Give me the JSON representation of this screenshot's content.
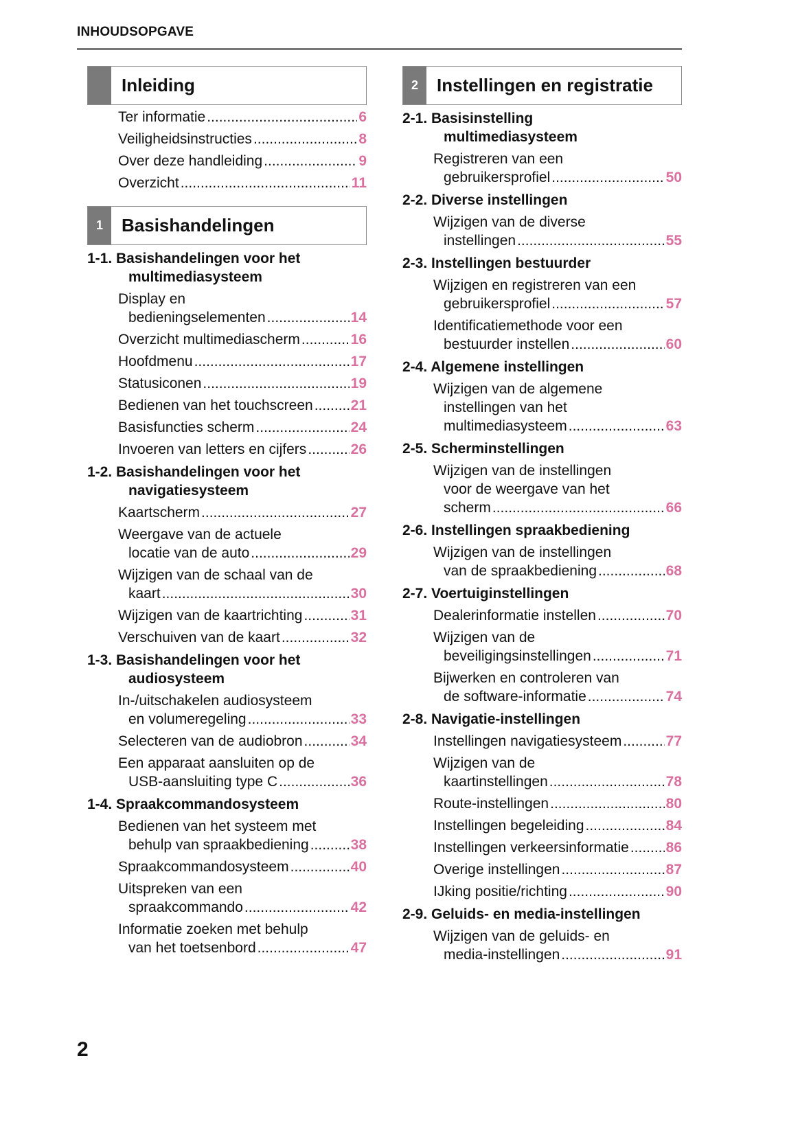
{
  "header": {
    "title": "INHOUDSOPGAVE"
  },
  "page_number": "2",
  "colors": {
    "page_ref": "#d9709f",
    "chapter_tab": "#7a7a7a"
  },
  "columns": [
    [
      {
        "type": "chapter",
        "num": "",
        "title": "Inleiding"
      },
      {
        "type": "entry",
        "lines": [
          "Ter informatie "
        ],
        "page": "6"
      },
      {
        "type": "entry",
        "lines": [
          "Veiligheidsinstructies "
        ],
        "page": "8"
      },
      {
        "type": "entry",
        "lines": [
          "Over deze handleiding"
        ],
        "page": "9"
      },
      {
        "type": "entry",
        "lines": [
          "Overzicht"
        ],
        "page": "11"
      },
      {
        "type": "chapter",
        "num": "1",
        "title": "Basishandelingen"
      },
      {
        "type": "section",
        "lines": [
          "1-1. Basishandelingen voor het",
          "multimediasysteem"
        ]
      },
      {
        "type": "entry",
        "lines": [
          "Display en",
          "bedieningselementen "
        ],
        "page": "14"
      },
      {
        "type": "entry",
        "lines": [
          "Overzicht multimediascherm "
        ],
        "page": "16"
      },
      {
        "type": "entry",
        "lines": [
          "Hoofdmenu "
        ],
        "page": "17"
      },
      {
        "type": "entry",
        "lines": [
          "Statusiconen "
        ],
        "page": "19"
      },
      {
        "type": "entry",
        "lines": [
          "Bedienen van het touchscreen "
        ],
        "page": "21"
      },
      {
        "type": "entry",
        "lines": [
          "Basisfuncties scherm"
        ],
        "page": "24"
      },
      {
        "type": "entry",
        "lines": [
          "Invoeren van letters en cijfers"
        ],
        "page": "26"
      },
      {
        "type": "section",
        "lines": [
          "1-2. Basishandelingen voor het",
          "navigatiesysteem"
        ]
      },
      {
        "type": "entry",
        "lines": [
          "Kaartscherm "
        ],
        "page": "27"
      },
      {
        "type": "entry",
        "lines": [
          "Weergave van de actuele",
          "locatie van de auto "
        ],
        "page": "29"
      },
      {
        "type": "entry",
        "lines": [
          "Wijzigen van de schaal van de",
          "kaart "
        ],
        "page": "30"
      },
      {
        "type": "entry",
        "lines": [
          "Wijzigen van de kaartrichting"
        ],
        "page": "31"
      },
      {
        "type": "entry",
        "lines": [
          "Verschuiven van de kaart "
        ],
        "page": "32"
      },
      {
        "type": "section",
        "lines": [
          "1-3. Basishandelingen voor het",
          "audiosysteem"
        ]
      },
      {
        "type": "entry",
        "lines": [
          "In-/uitschakelen audiosysteem",
          "en volumeregeling "
        ],
        "page": "33"
      },
      {
        "type": "entry",
        "lines": [
          "Selecteren van de audiobron"
        ],
        "page": "34"
      },
      {
        "type": "entry",
        "lines": [
          "Een apparaat aansluiten op de",
          "USB-aansluiting type C "
        ],
        "page": "36"
      },
      {
        "type": "section",
        "lines": [
          "1-4. Spraakcommandosysteem"
        ]
      },
      {
        "type": "entry",
        "lines": [
          "Bedienen van het systeem met",
          "behulp van spraakbediening "
        ],
        "page": "38"
      },
      {
        "type": "entry",
        "lines": [
          "Spraakcommandosysteem "
        ],
        "page": "40"
      },
      {
        "type": "entry",
        "lines": [
          "Uitspreken van een",
          "spraakcommando"
        ],
        "page": "42"
      },
      {
        "type": "entry",
        "lines": [
          "Informatie zoeken met behulp",
          "van het toetsenbord"
        ],
        "page": "47"
      }
    ],
    [
      {
        "type": "chapter",
        "num": "2",
        "title": "Instellingen en registratie"
      },
      {
        "type": "section",
        "lines": [
          "2-1. Basisinstelling",
          "multimediasysteem"
        ]
      },
      {
        "type": "entry",
        "lines": [
          "Registreren van een",
          "gebruikersprofiel"
        ],
        "page": "50"
      },
      {
        "type": "section",
        "lines": [
          "2-2. Diverse instellingen"
        ]
      },
      {
        "type": "entry",
        "lines": [
          "Wijzigen van de diverse",
          "instellingen "
        ],
        "page": "55"
      },
      {
        "type": "section",
        "lines": [
          "2-3. Instellingen bestuurder"
        ]
      },
      {
        "type": "entry",
        "lines": [
          "Wijzigen en registreren van een",
          "gebruikersprofiel"
        ],
        "page": "57"
      },
      {
        "type": "entry",
        "lines": [
          "Identificatiemethode voor een",
          "bestuurder instellen "
        ],
        "page": "60"
      },
      {
        "type": "section",
        "lines": [
          "2-4. Algemene instellingen"
        ]
      },
      {
        "type": "entry",
        "lines": [
          "Wijzigen van de algemene",
          "instellingen van het",
          "multimediasysteem"
        ],
        "page": "63"
      },
      {
        "type": "section",
        "lines": [
          "2-5. Scherminstellingen"
        ]
      },
      {
        "type": "entry",
        "lines": [
          "Wijzigen van de instellingen",
          "voor de weergave van het",
          "scherm"
        ],
        "page": "66"
      },
      {
        "type": "section",
        "lines": [
          "2-6. Instellingen spraakbediening"
        ]
      },
      {
        "type": "entry",
        "lines": [
          "Wijzigen van de instellingen",
          "van de spraakbediening "
        ],
        "page": "68"
      },
      {
        "type": "section",
        "lines": [
          "2-7. Voertuiginstellingen"
        ]
      },
      {
        "type": "entry",
        "lines": [
          "Dealerinformatie instellen "
        ],
        "page": "70"
      },
      {
        "type": "entry",
        "lines": [
          "Wijzigen van de",
          "beveiligingsinstellingen"
        ],
        "page": "71"
      },
      {
        "type": "entry",
        "lines": [
          "Bijwerken en controleren van",
          "de software-informatie "
        ],
        "page": "74"
      },
      {
        "type": "section",
        "lines": [
          "2-8. Navigatie-instellingen"
        ]
      },
      {
        "type": "entry",
        "lines": [
          "Instellingen navigatiesysteem"
        ],
        "page": "77"
      },
      {
        "type": "entry",
        "lines": [
          "Wijzigen van de",
          "kaartinstellingen "
        ],
        "page": "78"
      },
      {
        "type": "entry",
        "lines": [
          "Route-instellingen "
        ],
        "page": "80"
      },
      {
        "type": "entry",
        "lines": [
          "Instellingen begeleiding "
        ],
        "page": "84"
      },
      {
        "type": "entry",
        "lines": [
          "Instellingen verkeersinformatie "
        ],
        "page": "86"
      },
      {
        "type": "entry",
        "lines": [
          "Overige instellingen "
        ],
        "page": "87"
      },
      {
        "type": "entry",
        "lines": [
          "IJking positie/richting"
        ],
        "page": "90"
      },
      {
        "type": "section",
        "lines": [
          "2-9. Geluids- en media-instellingen"
        ]
      },
      {
        "type": "entry",
        "lines": [
          "Wijzigen van de geluids- en",
          "media-instellingen "
        ],
        "page": "91"
      }
    ]
  ]
}
